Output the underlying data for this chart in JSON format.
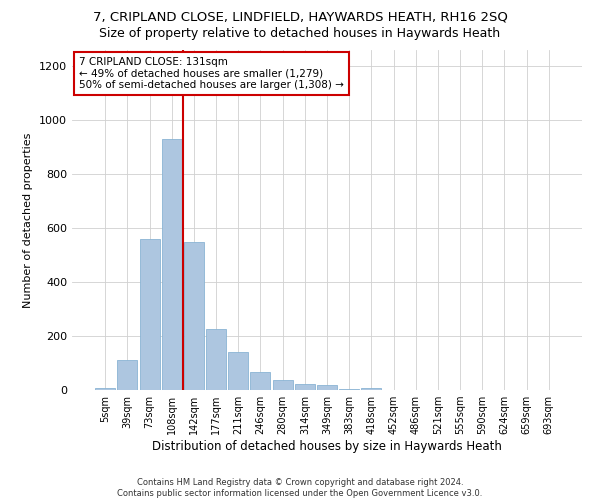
{
  "title1": "7, CRIPLAND CLOSE, LINDFIELD, HAYWARDS HEATH, RH16 2SQ",
  "title2": "Size of property relative to detached houses in Haywards Heath",
  "xlabel": "Distribution of detached houses by size in Haywards Heath",
  "ylabel": "Number of detached properties",
  "footer1": "Contains HM Land Registry data © Crown copyright and database right 2024.",
  "footer2": "Contains public sector information licensed under the Open Government Licence v3.0.",
  "bar_labels": [
    "5sqm",
    "39sqm",
    "73sqm",
    "108sqm",
    "142sqm",
    "177sqm",
    "211sqm",
    "246sqm",
    "280sqm",
    "314sqm",
    "349sqm",
    "383sqm",
    "418sqm",
    "452sqm",
    "486sqm",
    "521sqm",
    "555sqm",
    "590sqm",
    "624sqm",
    "659sqm",
    "693sqm"
  ],
  "bar_values": [
    8,
    110,
    560,
    930,
    550,
    225,
    140,
    65,
    38,
    22,
    18,
    5,
    8,
    0,
    0,
    0,
    0,
    0,
    0,
    0,
    0
  ],
  "bar_color": "#adc6e0",
  "bar_edge_color": "#8ab4d4",
  "vline_color": "#cc0000",
  "ylim": [
    0,
    1260
  ],
  "yticks": [
    0,
    200,
    400,
    600,
    800,
    1000,
    1200
  ],
  "annotation_text": "7 CRIPLAND CLOSE: 131sqm\n← 49% of detached houses are smaller (1,279)\n50% of semi-detached houses are larger (1,308) →",
  "annotation_box_color": "#ffffff",
  "annotation_box_edgecolor": "#cc0000",
  "title1_fontsize": 9.5,
  "title2_fontsize": 9,
  "xlabel_fontsize": 8.5,
  "ylabel_fontsize": 8,
  "footer_fontsize": 6,
  "annotation_fontsize": 7.5,
  "tick_fontsize": 7,
  "ytick_fontsize": 8
}
